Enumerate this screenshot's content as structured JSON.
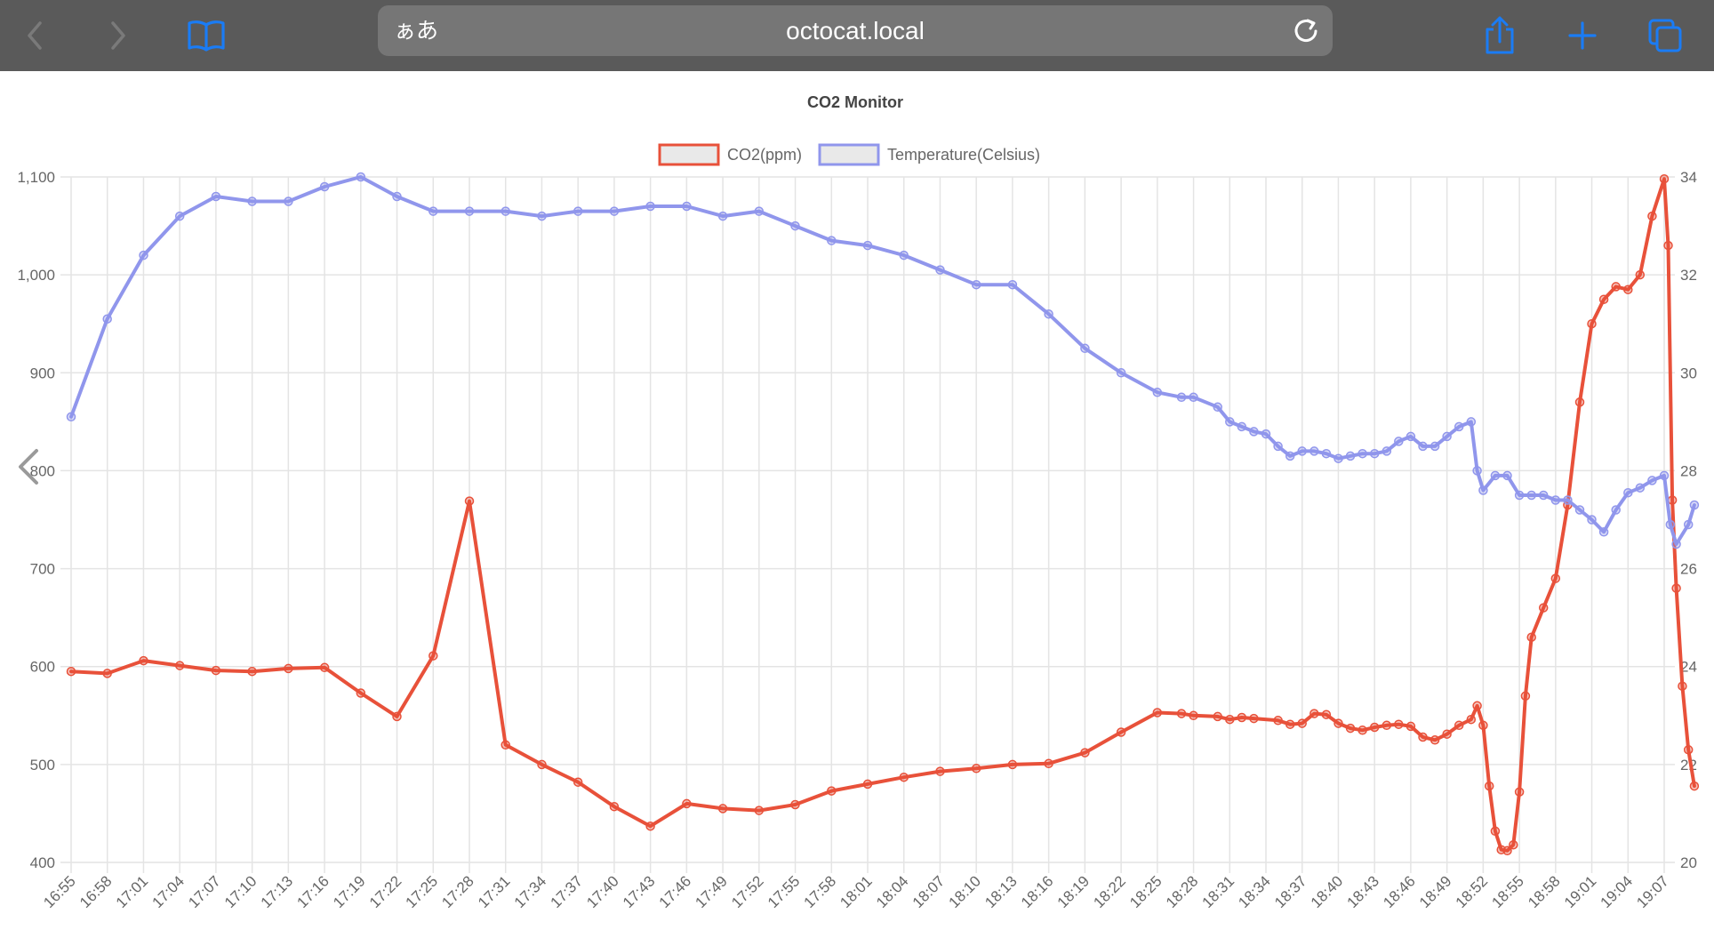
{
  "browser": {
    "address_prefix": "ぁあ",
    "url": "octocat.local",
    "icons": {
      "back": "chevron-left-icon",
      "forward": "chevron-right-icon",
      "bookmarks": "book-icon",
      "reload": "reload-icon",
      "share": "share-icon",
      "new_tab": "plus-icon",
      "tabs": "tabs-icon",
      "edge_swipe": "chevron-left-icon"
    },
    "colors": {
      "toolbar": "#5a5a5a",
      "url_field": "#767676",
      "accent": "#1a7cf5"
    }
  },
  "chart_data": {
    "type": "line",
    "title": "CO2 Monitor",
    "legend_position": "top-center",
    "grid": true,
    "x_ticks": [
      "16:55",
      "16:58",
      "17:01",
      "17:04",
      "17:07",
      "17:10",
      "17:13",
      "17:16",
      "17:19",
      "17:22",
      "17:25",
      "17:28",
      "17:31",
      "17:34",
      "17:37",
      "17:40",
      "17:43",
      "17:46",
      "17:49",
      "17:52",
      "17:55",
      "17:58",
      "18:01",
      "18:04",
      "18:07",
      "18:10",
      "18:13",
      "18:16",
      "18:19",
      "18:22",
      "18:25",
      "18:28",
      "18:31",
      "18:34",
      "18:37",
      "18:40",
      "18:43",
      "18:46",
      "18:49",
      "18:52",
      "18:55",
      "18:58",
      "19:01",
      "19:04",
      "19:07"
    ],
    "xlim": [
      "16:55",
      "19:07"
    ],
    "y_left": {
      "ticks": [
        "400",
        "500",
        "600",
        "700",
        "800",
        "900",
        "1,000",
        "1,100"
      ],
      "range": [
        400,
        1100
      ]
    },
    "y_right": {
      "ticks": [
        "20",
        "22",
        "24",
        "26",
        "28",
        "30",
        "32",
        "34"
      ],
      "range": [
        20,
        34
      ]
    },
    "series": [
      {
        "name": "CO2(ppm)",
        "axis": "left",
        "color": "#e8513a",
        "points": [
          [
            "16:55",
            595
          ],
          [
            "16:58",
            593
          ],
          [
            "17:01",
            606
          ],
          [
            "17:04",
            601
          ],
          [
            "17:07",
            596
          ],
          [
            "17:10",
            595
          ],
          [
            "17:13",
            598
          ],
          [
            "17:16",
            599
          ],
          [
            "17:19",
            573
          ],
          [
            "17:22",
            549
          ],
          [
            "17:25",
            611
          ],
          [
            "17:28",
            769
          ],
          [
            "17:31",
            520
          ],
          [
            "17:34",
            500
          ],
          [
            "17:37",
            482
          ],
          [
            "17:40",
            457
          ],
          [
            "17:43",
            437
          ],
          [
            "17:46",
            460
          ],
          [
            "17:49",
            455
          ],
          [
            "17:52",
            453
          ],
          [
            "17:55",
            459
          ],
          [
            "17:58",
            473
          ],
          [
            "18:01",
            480
          ],
          [
            "18:04",
            487
          ],
          [
            "18:07",
            493
          ],
          [
            "18:10",
            496
          ],
          [
            "18:13",
            500
          ],
          [
            "18:16",
            501
          ],
          [
            "18:19",
            512
          ],
          [
            "18:22",
            533
          ],
          [
            "18:25",
            553
          ],
          [
            "18:27",
            552
          ],
          [
            "18:28",
            550
          ],
          [
            "18:30",
            549
          ],
          [
            "18:31",
            546
          ],
          [
            "18:32",
            548
          ],
          [
            "18:33",
            547
          ],
          [
            "18:35",
            545
          ],
          [
            "18:36",
            541
          ],
          [
            "18:37",
            542
          ],
          [
            "18:38",
            552
          ],
          [
            "18:39",
            551
          ],
          [
            "18:40",
            542
          ],
          [
            "18:41",
            537
          ],
          [
            "18:42",
            535
          ],
          [
            "18:43",
            538
          ],
          [
            "18:44",
            540
          ],
          [
            "18:45",
            541
          ],
          [
            "18:46",
            539
          ],
          [
            "18:47",
            528
          ],
          [
            "18:48",
            525
          ],
          [
            "18:49",
            531
          ],
          [
            "18:50",
            540
          ],
          [
            "18:51",
            546
          ],
          [
            "18:51:30",
            560
          ],
          [
            "18:52",
            540
          ],
          [
            "18:52:30",
            478
          ],
          [
            "18:53",
            432
          ],
          [
            "18:53:30",
            413
          ],
          [
            "18:54",
            412
          ],
          [
            "18:54:30",
            418
          ],
          [
            "18:55",
            472
          ],
          [
            "18:55:30",
            570
          ],
          [
            "18:56",
            630
          ],
          [
            "18:57",
            660
          ],
          [
            "18:58",
            690
          ],
          [
            "18:59",
            765
          ],
          [
            "19:00",
            870
          ],
          [
            "19:01",
            950
          ],
          [
            "19:02",
            975
          ],
          [
            "19:03",
            988
          ],
          [
            "19:04",
            985
          ],
          [
            "19:05",
            1000
          ],
          [
            "19:06",
            1060
          ],
          [
            "19:07",
            1098
          ],
          [
            "19:07:20",
            1030
          ],
          [
            "19:07:40",
            770
          ],
          [
            "19:08",
            680
          ],
          [
            "19:08:30",
            580
          ],
          [
            "19:09",
            515
          ],
          [
            "19:09:30",
            478
          ]
        ]
      },
      {
        "name": "Temperature(Celsius)",
        "axis": "right",
        "color": "#9096ec",
        "points": [
          [
            "16:55",
            29.1
          ],
          [
            "16:58",
            31.1
          ],
          [
            "17:01",
            32.4
          ],
          [
            "17:04",
            33.2
          ],
          [
            "17:07",
            33.6
          ],
          [
            "17:10",
            33.5
          ],
          [
            "17:13",
            33.5
          ],
          [
            "17:16",
            33.8
          ],
          [
            "17:19",
            34.0
          ],
          [
            "17:22",
            33.6
          ],
          [
            "17:25",
            33.3
          ],
          [
            "17:28",
            33.3
          ],
          [
            "17:31",
            33.3
          ],
          [
            "17:34",
            33.2
          ],
          [
            "17:37",
            33.3
          ],
          [
            "17:40",
            33.3
          ],
          [
            "17:43",
            33.4
          ],
          [
            "17:46",
            33.4
          ],
          [
            "17:49",
            33.2
          ],
          [
            "17:52",
            33.3
          ],
          [
            "17:55",
            33.0
          ],
          [
            "17:58",
            32.7
          ],
          [
            "18:01",
            32.6
          ],
          [
            "18:04",
            32.4
          ],
          [
            "18:07",
            32.1
          ],
          [
            "18:10",
            31.8
          ],
          [
            "18:13",
            31.8
          ],
          [
            "18:16",
            31.2
          ],
          [
            "18:19",
            30.5
          ],
          [
            "18:22",
            30.0
          ],
          [
            "18:25",
            29.6
          ],
          [
            "18:27",
            29.5
          ],
          [
            "18:28",
            29.5
          ],
          [
            "18:30",
            29.3
          ],
          [
            "18:31",
            29.0
          ],
          [
            "18:32",
            28.9
          ],
          [
            "18:33",
            28.8
          ],
          [
            "18:34",
            28.75
          ],
          [
            "18:35",
            28.5
          ],
          [
            "18:36",
            28.3
          ],
          [
            "18:37",
            28.4
          ],
          [
            "18:38",
            28.4
          ],
          [
            "18:39",
            28.35
          ],
          [
            "18:40",
            28.25
          ],
          [
            "18:41",
            28.3
          ],
          [
            "18:42",
            28.35
          ],
          [
            "18:43",
            28.35
          ],
          [
            "18:44",
            28.4
          ],
          [
            "18:45",
            28.6
          ],
          [
            "18:46",
            28.7
          ],
          [
            "18:47",
            28.5
          ],
          [
            "18:48",
            28.5
          ],
          [
            "18:49",
            28.7
          ],
          [
            "18:50",
            28.9
          ],
          [
            "18:51",
            29.0
          ],
          [
            "18:51:30",
            28.0
          ],
          [
            "18:52",
            27.6
          ],
          [
            "18:53",
            27.9
          ],
          [
            "18:54",
            27.9
          ],
          [
            "18:55",
            27.5
          ],
          [
            "18:56",
            27.5
          ],
          [
            "18:57",
            27.5
          ],
          [
            "18:58",
            27.4
          ],
          [
            "18:59",
            27.4
          ],
          [
            "19:00",
            27.2
          ],
          [
            "19:01",
            27.0
          ],
          [
            "19:02",
            26.75
          ],
          [
            "19:03",
            27.2
          ],
          [
            "19:04",
            27.55
          ],
          [
            "19:05",
            27.65
          ],
          [
            "19:06",
            27.8
          ],
          [
            "19:07",
            27.9
          ],
          [
            "19:07:30",
            26.9
          ],
          [
            "19:08",
            26.5
          ],
          [
            "19:09",
            26.9
          ],
          [
            "19:09:30",
            27.3
          ]
        ]
      }
    ]
  }
}
